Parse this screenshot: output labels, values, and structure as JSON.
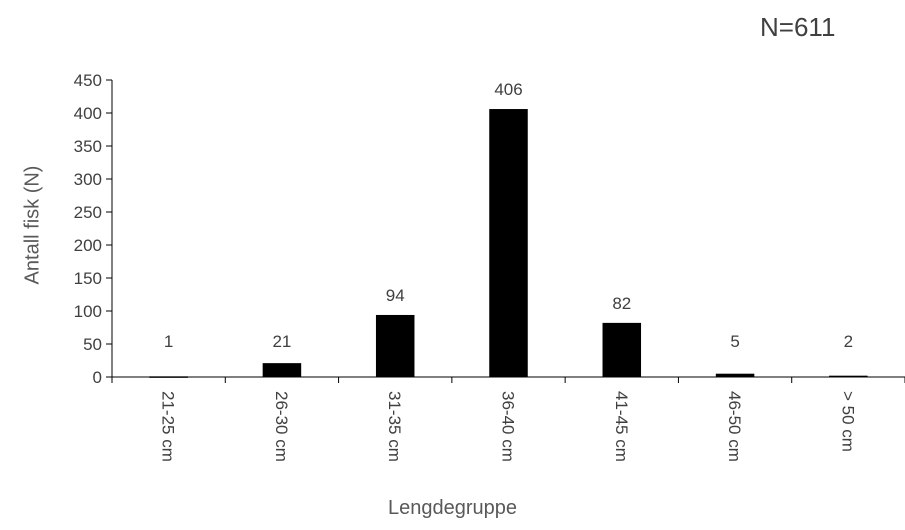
{
  "annotation": "N=611",
  "chart_data": {
    "type": "bar",
    "categories": [
      "21-25 cm",
      "26-30 cm",
      "31-35 cm",
      "36-40 cm",
      "41-45 cm",
      "46-50 cm",
      "> 50 cm"
    ],
    "values": [
      1,
      21,
      94,
      406,
      82,
      5,
      2
    ],
    "data_labels": [
      "1",
      "21",
      "94",
      "406",
      "82",
      "5",
      "2"
    ],
    "xlabel": "Lengdegruppe",
    "ylabel": "Antall fisk (N)",
    "ylim": [
      0,
      450
    ],
    "yticks": [
      0,
      50,
      100,
      150,
      200,
      250,
      300,
      350,
      400,
      450
    ],
    "grid": false,
    "bar_color": "#000000"
  }
}
